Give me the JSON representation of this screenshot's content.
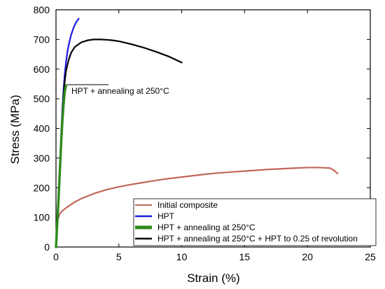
{
  "chart_data": {
    "type": "line",
    "title": "",
    "xlabel": "Strain (%)",
    "ylabel": "Stress (MPa)",
    "xlim": [
      0,
      25
    ],
    "ylim": [
      0,
      800
    ],
    "xticks": [
      0,
      5,
      10,
      15,
      20,
      25
    ],
    "yticks": [
      0,
      100,
      200,
      300,
      400,
      500,
      600,
      700,
      800
    ],
    "grid": false,
    "legend_position": "bottom-right",
    "series": [
      {
        "name": "Initial composite",
        "color": "#c0675a",
        "x": [
          0,
          0.05,
          0.15,
          0.3,
          0.5,
          1,
          1.5,
          2,
          3,
          4,
          5,
          6,
          7,
          8,
          9,
          10,
          11,
          12,
          13,
          14,
          15,
          16,
          17,
          18,
          19,
          20,
          21,
          21.8,
          22.1,
          22.4
        ],
        "y": [
          0,
          60,
          95,
          112,
          122,
          138,
          152,
          163,
          180,
          193,
          203,
          211,
          218,
          225,
          231,
          236,
          241,
          246,
          250,
          253,
          256,
          259,
          262,
          264,
          266,
          268,
          268,
          266,
          259,
          248
        ]
      },
      {
        "name": "HPT",
        "color": "#1a1ae0",
        "x": [
          0,
          0.1,
          0.2,
          0.3,
          0.4,
          0.5,
          0.6,
          0.7,
          0.8,
          0.9,
          1.0,
          1.2,
          1.4,
          1.6,
          1.8
        ],
        "y": [
          0,
          80,
          170,
          270,
          370,
          460,
          530,
          585,
          625,
          655,
          680,
          715,
          740,
          758,
          770
        ]
      },
      {
        "name": "HPT + annealing at 250°C",
        "color": "#2e8b1a",
        "x": [
          0,
          0.1,
          0.2,
          0.3,
          0.4,
          0.5,
          0.6,
          0.7,
          0.8
        ],
        "y": [
          0,
          80,
          160,
          250,
          340,
          420,
          480,
          525,
          545
        ]
      },
      {
        "name": "HPT + annealing at 250°C + HPT to 0.25 of revolution",
        "color": "#000000",
        "x": [
          0,
          0.1,
          0.2,
          0.3,
          0.4,
          0.5,
          0.6,
          0.7,
          0.8,
          1.0,
          1.2,
          1.5,
          2.0,
          2.5,
          3.0,
          3.5,
          4.0,
          4.5,
          5.0,
          6.0,
          7.0,
          8.0,
          9.0,
          10.0
        ],
        "y": [
          0,
          80,
          170,
          260,
          350,
          440,
          510,
          560,
          595,
          630,
          655,
          675,
          690,
          697,
          700,
          700,
          699,
          697,
          694,
          684,
          672,
          658,
          642,
          622
        ]
      }
    ],
    "annotations": [
      {
        "text": "HPT + annealing at 250°C",
        "x": 0.9,
        "y": 545
      }
    ]
  }
}
